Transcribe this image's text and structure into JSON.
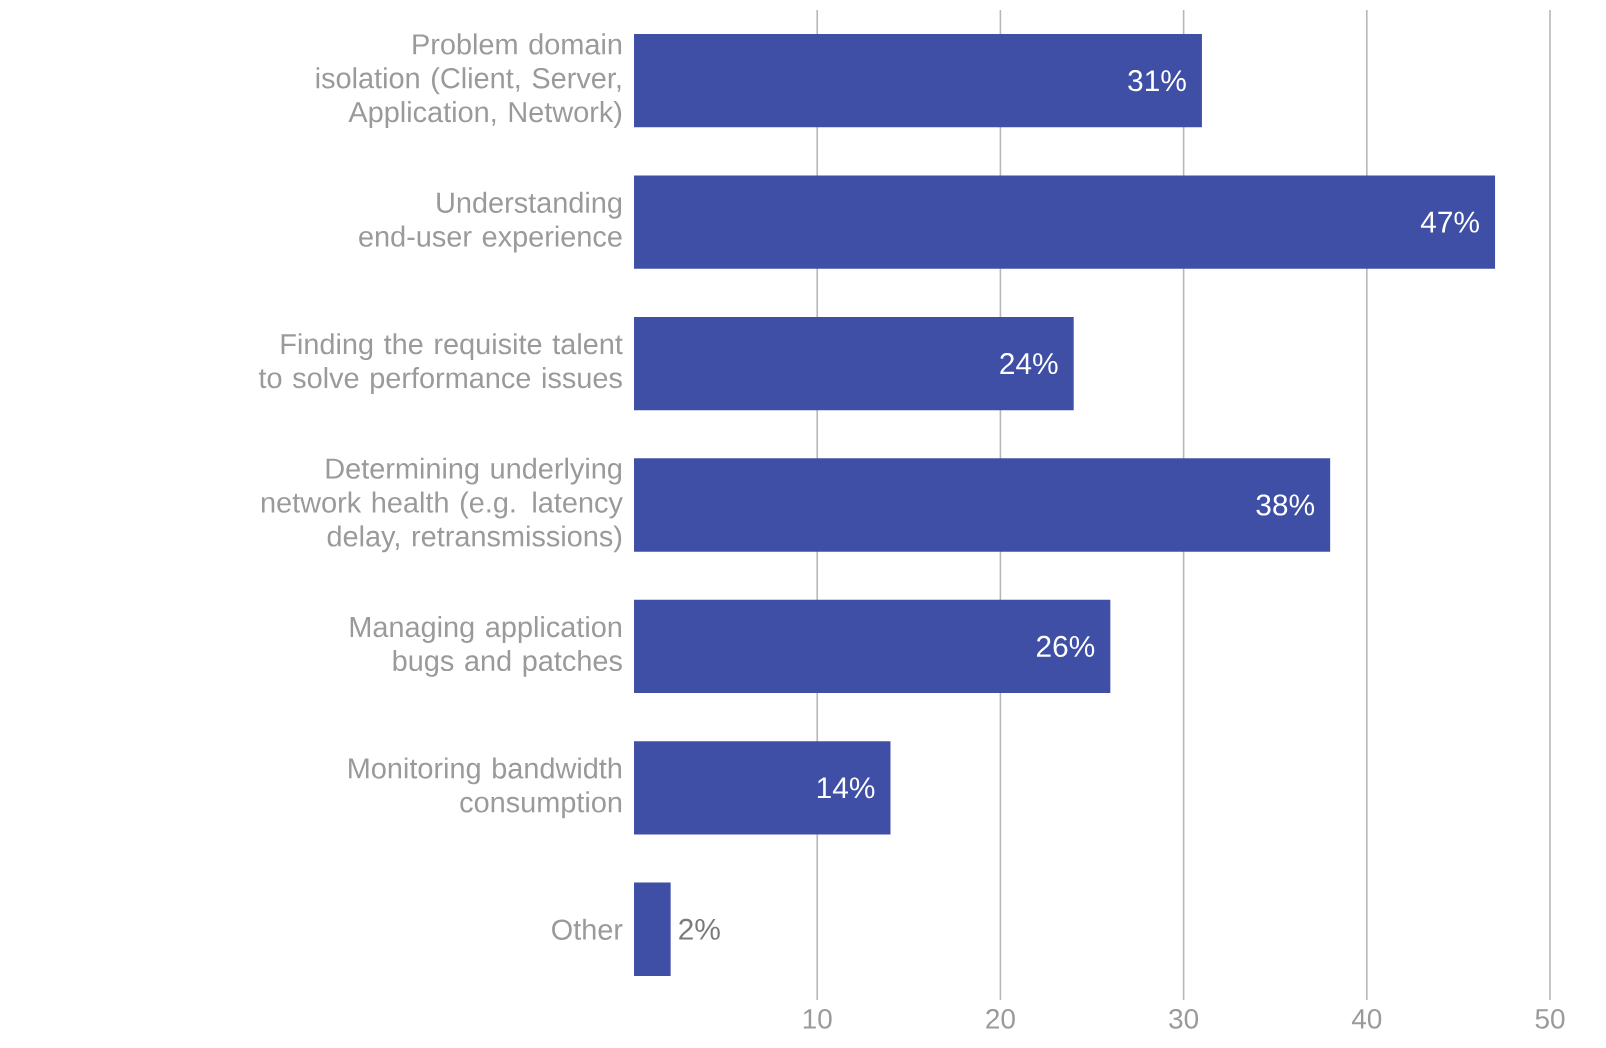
{
  "chart_data": {
    "type": "bar",
    "orientation": "horizontal",
    "categories": [
      "Problem domain isolation (Client, Server, Application, Network)",
      "Understanding end-user experience",
      "Finding the requisite talent to solve performance issues",
      "Determining underlying network health (e.g. latency delay, retransmissions)",
      "Managing application bugs and patches",
      "Monitoring bandwidth consumption",
      "Other"
    ],
    "values": [
      31,
      47,
      24,
      38,
      26,
      14,
      2
    ],
    "value_labels": [
      "31%",
      "47%",
      "24%",
      "38%",
      "26%",
      "14%",
      "2%"
    ],
    "color": "#3f4fa6",
    "xlim": [
      0,
      50
    ],
    "xticks": [
      10,
      20,
      30,
      40,
      50
    ],
    "grid": "x"
  }
}
